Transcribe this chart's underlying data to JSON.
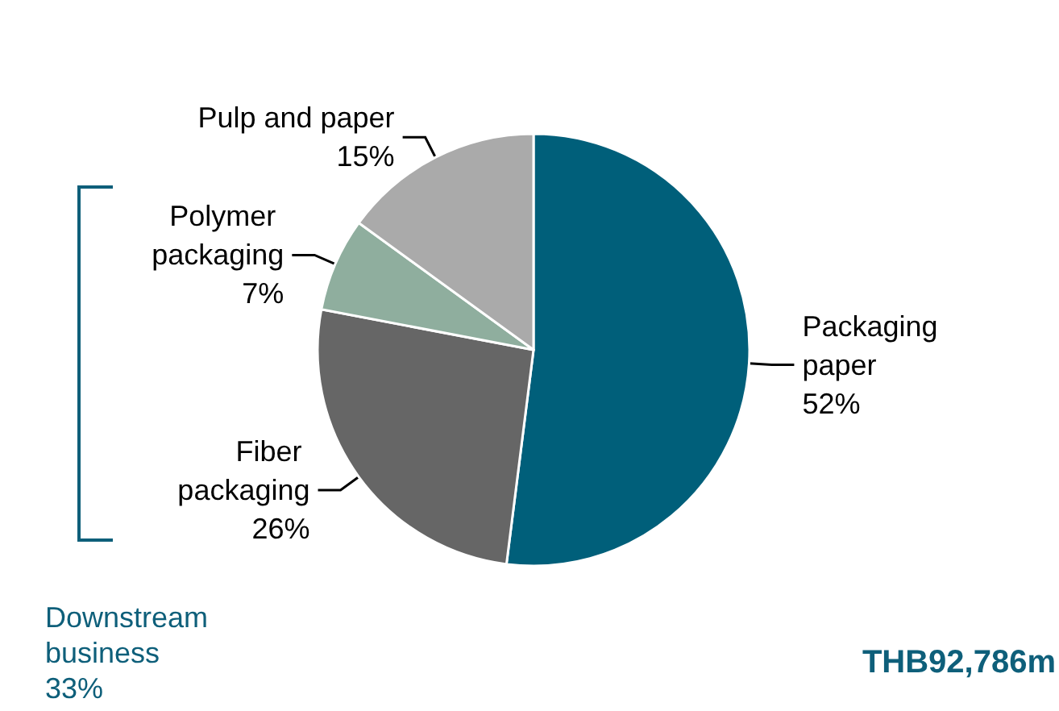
{
  "chart_data": {
    "type": "pie",
    "categories": [
      "Packaging paper",
      "Fiber packaging",
      "Polymer packaging",
      "Pulp and paper"
    ],
    "values": [
      52,
      26,
      7,
      15
    ],
    "value_labels": [
      "52%",
      "26%",
      "7%",
      "15%"
    ],
    "colors": [
      "#005f7a",
      "#666666",
      "#8fae9e",
      "#aaaaaa"
    ],
    "legend": false,
    "annotations": [
      "Downstream business 33%",
      "THB92,786m"
    ]
  }
}
